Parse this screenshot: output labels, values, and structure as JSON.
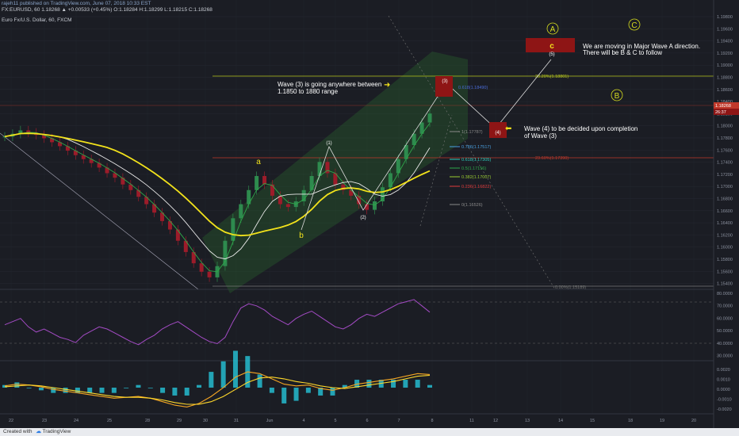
{
  "header": {
    "publisher": "rajeh11 published on TradingView.com, June 07, 2018 10:33 EST",
    "ticker_line": "FX:EURUSD, 60  1.18268 ▲ +0.00533 (+0.45%)  O:1.18284  H:1.18299  L:1.18215  C:1.18268",
    "pair_title": "Euro Fx/U.S. Dollar, 60, FXCM"
  },
  "colors": {
    "background": "#1b1d24",
    "ma_yellow": "#f2e21b",
    "ma_white": "#e8e8e8",
    "ma_green": "#2ea84a",
    "channel": "#2b6b2f",
    "box_red": "#8e1515",
    "rsi": "#a34bc4",
    "macd_line": "#f5a623",
    "signal_line": "#ffd82b",
    "histogram": "#26c6da",
    "candle_up": "#2e8b4e",
    "candle_down": "#9c1c2a",
    "annotation_circle": "#d6dc1f"
  },
  "annotations": {
    "wave3_text": [
      "Wave (3) is going anywhere between",
      "1.1850 to 1880 range"
    ],
    "wave4_text": [
      "Wave (4) to be decided upon completion",
      "of Wave (3)"
    ],
    "major_text": [
      "We are moving in Major Wave A direction.",
      "There will be B & C to follow"
    ],
    "wave_labels": {
      "w1": "(1)",
      "w2": "(2)",
      "w3": "(3)",
      "w4": "(4)",
      "w5": "(5)",
      "a": "a",
      "b": "b",
      "c": "c"
    },
    "circles": {
      "A": "A",
      "B": "B",
      "C": "C"
    }
  },
  "fib_levels": [
    {
      "label": "38.20%(1.18801)",
      "color": "#b7c61c"
    },
    {
      "label": "23.60%(1.17390)",
      "color": "#c0392b"
    },
    {
      "label": "0.00%(1.15189)",
      "color": "#777777"
    },
    {
      "label": "1(1.17787)",
      "color": "#8a8a8a"
    },
    {
      "label": "0.786(1.17517)",
      "color": "#4aa0e0"
    },
    {
      "label": "0.618(1.17305)",
      "color": "#2ecfbf"
    },
    {
      "label": "0.5(1.17156)",
      "color": "#2ea84a"
    },
    {
      "label": "0.382(1.17007)",
      "color": "#9acd32"
    },
    {
      "label": "0.236(1.16822)",
      "color": "#e03c3c"
    },
    {
      "label": "0(1.16526)",
      "color": "#8a8a8a"
    },
    {
      "label": "0.618(1.18490)",
      "color": "#4a6cd8"
    }
  ],
  "price_axis": {
    "ticks": [
      "1.19800",
      "1.19600",
      "1.19400",
      "1.19200",
      "1.19000",
      "1.18800",
      "1.18600",
      "1.18400",
      "1.18200",
      "1.18000",
      "1.17800",
      "1.17600",
      "1.17400",
      "1.17200",
      "1.17000",
      "1.16800",
      "1.16600",
      "1.16400",
      "1.16200",
      "1.16000",
      "1.15800",
      "1.15600",
      "1.15400"
    ],
    "last_price": "1.18268",
    "last_time": "26:37",
    "range": [
      1.1525,
      1.1998
    ]
  },
  "rsi_axis": {
    "ticks": [
      "80.0000",
      "70.0000",
      "60.0000",
      "50.0000",
      "40.0000",
      "30.0000"
    ]
  },
  "macd_axis": {
    "ticks": [
      "0.0020",
      "0.0010",
      "0.0000",
      "-0.0010",
      "-0.0020"
    ]
  },
  "time_axis": {
    "ticks": [
      "22",
      "23",
      "24",
      "25",
      "28",
      "29",
      "30",
      "31",
      "Jun",
      "4",
      "5",
      "6",
      "7",
      "8",
      "11",
      "12",
      "13",
      "14",
      "15",
      "18",
      "19",
      "20"
    ]
  },
  "footer": {
    "created": "Created with",
    "brand": "TradingView"
  },
  "chart_data": {
    "type": "candlestick",
    "title": "Euro Fx/U.S. Dollar, 60, FXCM",
    "symbol": "FX:EURUSD",
    "ylim": [
      1.1525,
      1.1998
    ],
    "series": [
      {
        "name": "Price (approx. hourly closes)",
        "values": [
          1.1785,
          1.179,
          1.1796,
          1.1792,
          1.1788,
          1.1782,
          1.1775,
          1.1768,
          1.176,
          1.1752,
          1.1745,
          1.1738,
          1.173,
          1.172,
          1.1712,
          1.17,
          1.169,
          1.1678,
          1.1665,
          1.165,
          1.1635,
          1.162,
          1.16,
          1.158,
          1.156,
          1.1545,
          1.1535,
          1.1555,
          1.16,
          1.164,
          1.1665,
          1.169,
          1.1715,
          1.17,
          1.168,
          1.1665,
          1.166,
          1.167,
          1.169,
          1.1715,
          1.174,
          1.172,
          1.17,
          1.169,
          1.168,
          1.1665,
          1.1655,
          1.167,
          1.1695,
          1.172,
          1.1745,
          1.177,
          1.179,
          1.181,
          1.1826
        ]
      }
    ],
    "rsi": {
      "ylim": [
        20,
        85
      ],
      "values": [
        52,
        55,
        58,
        50,
        45,
        48,
        44,
        40,
        38,
        35,
        42,
        46,
        50,
        48,
        44,
        40,
        36,
        33,
        38,
        42,
        48,
        52,
        55,
        50,
        45,
        40,
        36,
        34,
        40,
        55,
        68,
        72,
        70,
        66,
        60,
        56,
        52,
        58,
        62,
        65,
        60,
        55,
        50,
        48,
        52,
        58,
        62,
        60,
        64,
        68,
        72,
        74,
        76,
        70,
        64
      ]
    },
    "macd": {
      "ylim": [
        -0.0028,
        0.0028
      ],
      "macd": [
        0.0002,
        0.0004,
        0.0003,
        0.0001,
        -0.0002,
        -0.0004,
        -0.0006,
        -0.0008,
        -0.001,
        -0.0012,
        -0.0011,
        -0.001,
        -0.0012,
        -0.0016,
        -0.002,
        -0.0022,
        -0.0018,
        -0.001,
        0.0,
        0.0012,
        0.0018,
        0.0016,
        0.001,
        0.0004,
        0.0002,
        0.0003,
        -0.0001,
        -0.0003,
        0.0,
        0.0004,
        0.0006,
        0.0008,
        0.001,
        0.0013,
        0.0016,
        0.0015
      ],
      "signal": [
        0.0001,
        0.0002,
        0.0003,
        0.0002,
        0.0,
        -0.0002,
        -0.0004,
        -0.0006,
        -0.0008,
        -0.001,
        -0.0011,
        -0.0011,
        -0.0012,
        -0.0014,
        -0.0017,
        -0.0019,
        -0.0019,
        -0.0016,
        -0.001,
        -0.0002,
        0.0006,
        0.0011,
        0.0012,
        0.001,
        0.0007,
        0.0005,
        0.0002,
        0.0,
        -0.0001,
        0.0001,
        0.0003,
        0.0005,
        0.0007,
        0.001,
        0.0013,
        0.0014
      ]
    }
  }
}
